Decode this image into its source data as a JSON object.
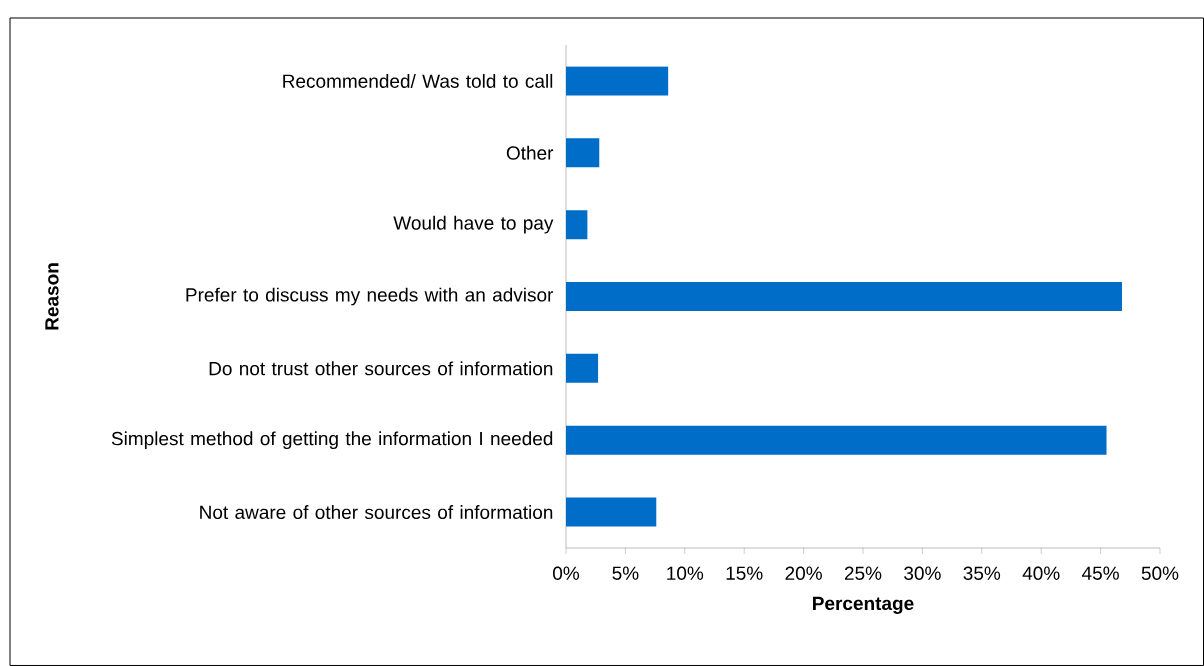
{
  "chart_data": {
    "type": "bar",
    "orientation": "horizontal",
    "xlabel": "Percentage",
    "ylabel": "Reason",
    "categories": [
      "Recommended/ Was told to call",
      "Other",
      "Would have to pay",
      "Prefer to discuss my needs with an advisor",
      "Do not trust other sources of information",
      "Simplest method of getting the information I needed",
      "Not aware of other sources of information"
    ],
    "values": [
      8.6,
      2.8,
      1.8,
      46.8,
      2.7,
      45.5,
      7.6
    ],
    "color": "#006ec8",
    "xlim": [
      0,
      50
    ],
    "xticks": [
      {
        "value": 0,
        "label": "0%"
      },
      {
        "value": 5,
        "label": "5%"
      },
      {
        "value": 10,
        "label": "10%"
      },
      {
        "value": 15,
        "label": "15%"
      },
      {
        "value": 20,
        "label": "20%"
      },
      {
        "value": 25,
        "label": "25%"
      },
      {
        "value": 30,
        "label": "30%"
      },
      {
        "value": 35,
        "label": "35%"
      },
      {
        "value": 40,
        "label": "40%"
      },
      {
        "value": 45,
        "label": "45%"
      },
      {
        "value": 50,
        "label": "50%"
      }
    ]
  }
}
